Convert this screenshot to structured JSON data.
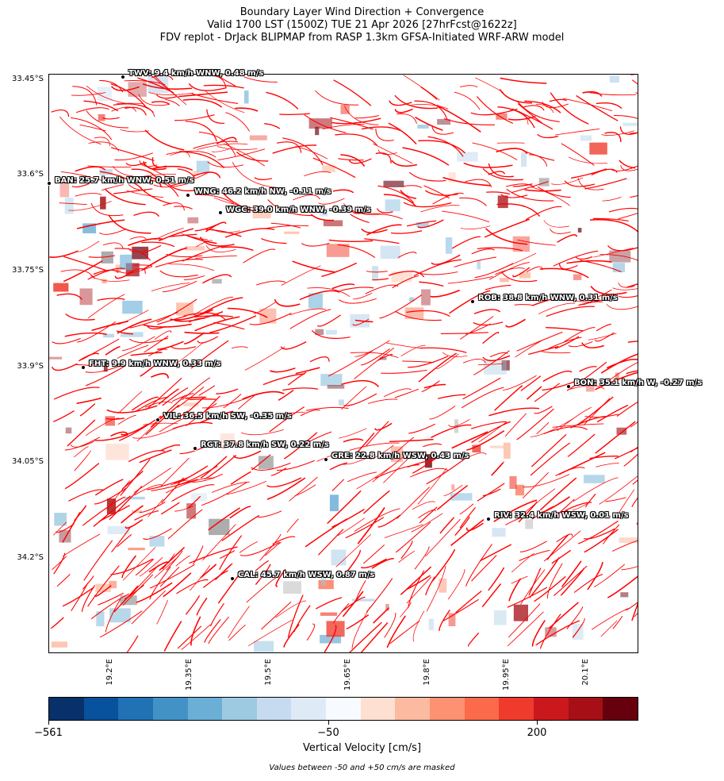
{
  "title": {
    "line1": "Boundary Layer Wind Direction + Convergence",
    "line2": "Valid 1700 LST (1500Z) TUE 21 Apr 2026 [27hrFcst@1622z]",
    "line3": "FDV replot - DrJack BLIPMAP from RASP 1.3km GFSA-Initiated WRF-ARW model"
  },
  "y_axis": {
    "labels": [
      "33.45°S",
      "33.6°S",
      "33.75°S",
      "33.9°S",
      "34.05°S",
      "34.2°S"
    ]
  },
  "x_axis": {
    "labels": [
      "19.2°E",
      "19.35°E",
      "19.5°E",
      "19.65°E",
      "19.8°E",
      "19.95°E",
      "20.1°E"
    ]
  },
  "stations": [
    {
      "id": "TWV",
      "label": "TWV: 9.4 km/h WNW, 0.48 m/s",
      "lon": 19.34,
      "lat": 33.45
    },
    {
      "id": "BAN",
      "label": "BAN: 25.7 km/h WNW, 0.51 m/s",
      "lon": 19.2,
      "lat": 33.61
    },
    {
      "id": "WNG",
      "label": "WNG: 46.2 km/h NW, -0.11 m/s",
      "lon": 19.46,
      "lat": 33.63
    },
    {
      "id": "WGC",
      "label": "WGC: 39.0 km/h WNW, -0.39 m/s",
      "lon": 19.52,
      "lat": 33.66
    },
    {
      "id": "ROB",
      "label": "ROB: 38.8 km/h WNW, 0.31 m/s",
      "lon": 20.0,
      "lat": 33.81
    },
    {
      "id": "FHT",
      "label": "FHT: 9.9 km/h WNW, 0.33 m/s",
      "lon": 19.26,
      "lat": 33.9
    },
    {
      "id": "BON",
      "label": "BON: 35.1 km/h W, -0.27 m/s",
      "lon": 20.18,
      "lat": 33.93
    },
    {
      "id": "VIL",
      "label": "VIL: 36.5 km/h SW, -0.35 m/s",
      "lon": 19.41,
      "lat": 33.99
    },
    {
      "id": "RGT",
      "label": "RGT: 37.8 km/h SW, 0.22 m/s",
      "lon": 19.48,
      "lat": 34.03
    },
    {
      "id": "GRE",
      "label": "GRE: 22.8 km/h WSW, 0.43 m/s",
      "lon": 19.72,
      "lat": 34.05
    },
    {
      "id": "RIV",
      "label": "RIV: 32.4 km/h WSW, 0.01 m/s",
      "lon": 20.03,
      "lat": 34.14
    },
    {
      "id": "CAL",
      "label": "CAL: 45.7 km/h WSW, 0.87 m/s",
      "lon": 19.54,
      "lat": 34.24
    }
  ],
  "colorbar": {
    "colors": [
      "#08306b",
      "#08519c",
      "#2171b5",
      "#4292c6",
      "#6baed6",
      "#9ecae1",
      "#c6dbef",
      "#deebf7",
      "#f7fbff",
      "#fee0d2",
      "#fcbba1",
      "#fc9272",
      "#fb6a4a",
      "#ef3b2c",
      "#cb181d",
      "#a50f15",
      "#67000d"
    ],
    "tick_labels": [
      "−561",
      "−50",
      "200"
    ],
    "title": "Vertical Velocity [cm/s]",
    "note": "Values between -50 and +50 cm/s are masked"
  },
  "streamline_color": "#ff0000"
}
